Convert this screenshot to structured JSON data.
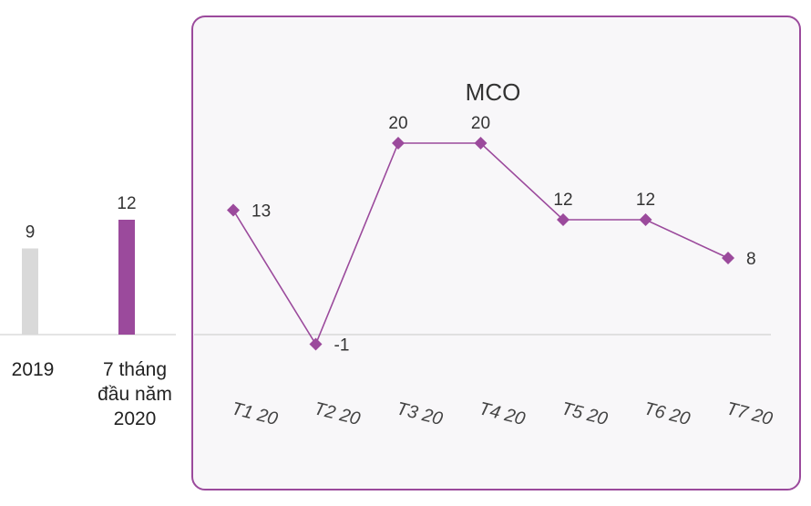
{
  "colors": {
    "bar_2019": "#d9d9d9",
    "bar_2020": "#9b4a9c",
    "line": "#9b4a9c",
    "marker": "#9b4a9c",
    "panel_border": "#9b4a9c",
    "panel_fill": "#f8f7f9",
    "annotation": "#e04a3c",
    "baseline": "#c8c8c8"
  },
  "chart_data": [
    {
      "type": "bar",
      "categories": [
        "2019",
        "7 tháng đầu năm 2020"
      ],
      "category_lines": [
        [
          "2019"
        ],
        [
          "7 tháng",
          "đầu năm",
          "2020"
        ]
      ],
      "values": [
        9,
        12
      ],
      "value_labels": [
        "9",
        "12"
      ],
      "ylim": [
        0,
        14
      ]
    },
    {
      "type": "line",
      "categories": [
        "T1 20",
        "T2 20",
        "T3 20",
        "T4 20",
        "T5 20",
        "T6 20",
        "T7 20"
      ],
      "values": [
        13,
        -1,
        20,
        20,
        12,
        12,
        8
      ],
      "value_labels": [
        "13",
        "-1",
        "20",
        "20",
        "12",
        "12",
        "8"
      ],
      "annotation": "MCO",
      "ylim": [
        -1,
        20
      ]
    }
  ]
}
